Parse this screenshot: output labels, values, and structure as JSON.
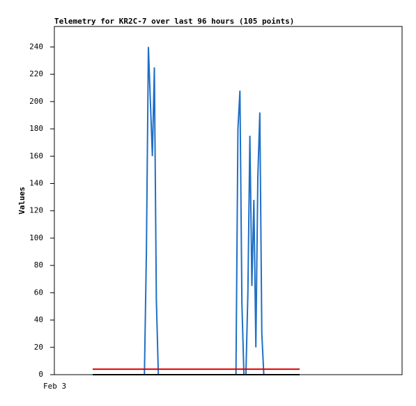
{
  "chart_data": {
    "type": "line",
    "title": "Telemetry for KR2C-7 over last 96 hours (105 points)",
    "ylabel": "Values",
    "xtick_label": "Feb 3",
    "categories": [
      null,
      null,
      null,
      null,
      null,
      null,
      null,
      null,
      null,
      null,
      null,
      null,
      null,
      null,
      null,
      null,
      null,
      null,
      null,
      null,
      null,
      null,
      null,
      null,
      null,
      null,
      null,
      null,
      null,
      null,
      null,
      null,
      null,
      null,
      null,
      null,
      null,
      null,
      null,
      null,
      null,
      null,
      null,
      null,
      null,
      null,
      null,
      null,
      null,
      null,
      null,
      null,
      null,
      null,
      null,
      null,
      null,
      null,
      null,
      null,
      null,
      null,
      null,
      null,
      null,
      null,
      null,
      null,
      null,
      null,
      null,
      null,
      null,
      null,
      null,
      null,
      null,
      null,
      null,
      null,
      null,
      null,
      null,
      null,
      null,
      null,
      null,
      null,
      null,
      null,
      null,
      null,
      null,
      null,
      null,
      null,
      null,
      null,
      null,
      null,
      null,
      null,
      null,
      null,
      null
    ],
    "series": [
      {
        "color": "#1f6fc5",
        "values": [
          0,
          0,
          0,
          0,
          0,
          0,
          0,
          0,
          0,
          0,
          0,
          0,
          0,
          0,
          0,
          0,
          0,
          0,
          0,
          0,
          0,
          0,
          0,
          0,
          0,
          0,
          0,
          90,
          240,
          200,
          160,
          225,
          55,
          0,
          0,
          0,
          0,
          0,
          0,
          0,
          0,
          0,
          0,
          0,
          0,
          0,
          0,
          0,
          0,
          0,
          0,
          0,
          0,
          0,
          0,
          0,
          0,
          0,
          0,
          0,
          0,
          0,
          0,
          0,
          0,
          0,
          0,
          0,
          0,
          0,
          0,
          0,
          0,
          180,
          208,
          52,
          0,
          0,
          60,
          175,
          65,
          128,
          20,
          145,
          192,
          30,
          0,
          0,
          0,
          0,
          0,
          0,
          0,
          0,
          0,
          0,
          0,
          0,
          0,
          0,
          0,
          0,
          0,
          0,
          0
        ]
      },
      {
        "color": "#e00000",
        "values": [
          4,
          4,
          4,
          4,
          4,
          4,
          4,
          4,
          4,
          4,
          4,
          4,
          4,
          4,
          4,
          4,
          4,
          4,
          4,
          4,
          4,
          4,
          4,
          4,
          4,
          4,
          4,
          4,
          4,
          4,
          4,
          4,
          4,
          4,
          4,
          4,
          4,
          4,
          4,
          4,
          4,
          4,
          4,
          4,
          4,
          4,
          4,
          4,
          4,
          4,
          4,
          4,
          4,
          4,
          4,
          4,
          4,
          4,
          4,
          4,
          4,
          4,
          4,
          4,
          4,
          4,
          4,
          4,
          4,
          4,
          4,
          4,
          4,
          4,
          4,
          4,
          4,
          4,
          4,
          4,
          4,
          4,
          4,
          4,
          4,
          4,
          4,
          4,
          4,
          4,
          4,
          4,
          4,
          4,
          4,
          4,
          4,
          4,
          4,
          4,
          4,
          4,
          4,
          4,
          4
        ]
      },
      {
        "color": "#000000",
        "values": [
          0,
          0,
          0,
          0,
          0,
          0,
          0,
          0,
          0,
          0,
          0,
          0,
          0,
          0,
          0,
          0,
          0,
          0,
          0,
          0,
          0,
          0,
          0,
          0,
          0,
          0,
          0,
          0,
          0,
          0,
          0,
          0,
          0,
          0,
          0,
          0,
          0,
          0,
          0,
          0,
          0,
          0,
          0,
          0,
          0,
          0,
          0,
          0,
          0,
          0,
          0,
          0,
          0,
          0,
          0,
          0,
          0,
          0,
          0,
          0,
          0,
          0,
          0,
          0,
          0,
          0,
          0,
          0,
          0,
          0,
          0,
          0,
          0,
          0,
          0,
          0,
          0,
          0,
          0,
          0,
          0,
          0,
          0,
          0,
          0,
          0,
          0,
          0,
          0,
          0,
          0,
          0,
          0,
          0,
          0,
          0,
          0,
          0,
          0,
          0,
          0,
          0,
          0,
          0,
          0
        ]
      }
    ],
    "ylim": [
      0,
      255
    ],
    "yticks": [
      0,
      20,
      40,
      60,
      80,
      100,
      120,
      140,
      160,
      180,
      200,
      220,
      240
    ]
  }
}
